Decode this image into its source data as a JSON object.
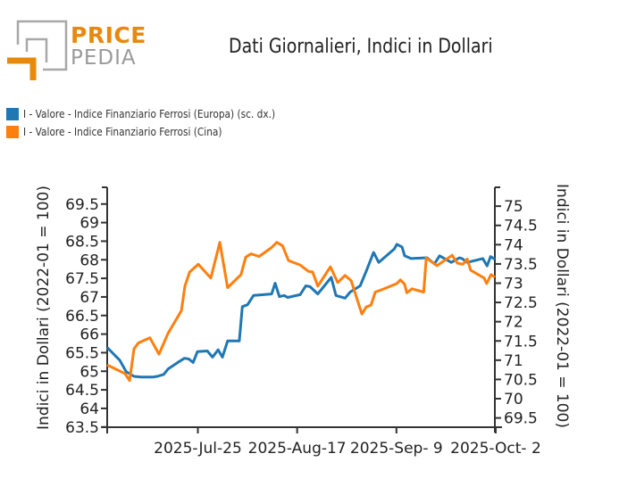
{
  "logo": {
    "line1": "PRICE",
    "line2": "PEDIA",
    "accent": "#e8890c",
    "gray": "#9a9a9a"
  },
  "chart_data": {
    "type": "line",
    "title": "Dati Giornalieri, Indici in Dollari",
    "ylabel_left": "Indici in Dollari (2022-01 = 100)",
    "ylabel_right": "Indici in Dollari (2022-01 = 100)",
    "xlabel": "",
    "x_ticks": [
      "2025-Jul-25",
      "2025-Aug-17",
      "2025-Sep- 9",
      "2025-Oct- 2"
    ],
    "x_tick_days": [
      21,
      44,
      67,
      90
    ],
    "x_range_days": [
      0,
      89.8
    ],
    "ylim_left": [
      63.35,
      69.95
    ],
    "yticks_left": [
      "69.5",
      "69",
      "68.5",
      "68",
      "67.5",
      "67",
      "66.5",
      "66",
      "65.5",
      "65",
      "64.5",
      "64",
      "63.5"
    ],
    "ylim_right": [
      69.12,
      75.49
    ],
    "yticks_right": [
      "75",
      "74.5",
      "74",
      "73.5",
      "73",
      "72.5",
      "72",
      "71.5",
      "71",
      "70.5",
      "70",
      "69.5"
    ],
    "grid": false,
    "legend_position": "top-left",
    "series": [
      {
        "name": "I - Valore - Indice Finanziario Ferrosi (Europa) (sc. dx.)",
        "axis": "right",
        "color": "#1f77b4",
        "x": [
          0,
          2.9,
          4.4,
          6.2,
          7.9,
          10.4,
          11.6,
          13.1,
          14.1,
          16.6,
          17.9,
          18.9,
          19.9,
          20.9,
          23.2,
          24.4,
          25.7,
          26.7,
          27.9,
          30.6,
          31.3,
          32.5,
          33.9,
          38.1,
          38.9,
          39.9,
          41,
          41.8,
          44.7,
          46,
          47,
          48.8,
          51.9,
          53,
          55.1,
          56.3,
          57.6,
          58.6,
          60,
          61.7,
          62.9,
          66.5,
          67.1,
          68.3,
          68.9,
          70.4,
          74.1,
          75.8,
          77,
          79.7,
          81.6,
          82.2,
          83.4,
          87,
          88,
          88.8,
          89.8
        ],
        "values": [
          71.33,
          71.0,
          70.7,
          70.58,
          70.56,
          70.56,
          70.58,
          70.63,
          70.77,
          70.96,
          71.05,
          71.03,
          70.94,
          71.22,
          71.24,
          71.08,
          71.27,
          71.08,
          71.5,
          71.5,
          72.39,
          72.44,
          72.68,
          72.72,
          73.0,
          72.65,
          72.68,
          72.63,
          72.7,
          72.93,
          72.91,
          72.72,
          73.15,
          72.68,
          72.61,
          72.77,
          72.86,
          72.93,
          73.31,
          73.8,
          73.54,
          73.89,
          74.01,
          73.94,
          73.71,
          73.64,
          73.66,
          73.5,
          73.71,
          73.54,
          73.66,
          73.64,
          73.54,
          73.64,
          73.45,
          73.69,
          73.62
        ]
      },
      {
        "name": "I - Valore - Indice Finanziario Ferrosi (Cina)",
        "axis": "left",
        "color": "#ff7f0e",
        "x": [
          0,
          4.1,
          5.2,
          6.2,
          7.2,
          9.9,
          12,
          14.1,
          17.2,
          18,
          19.1,
          21.1,
          24,
          26.1,
          27.9,
          31,
          32.1,
          33.3,
          35.2,
          38.1,
          39.3,
          40.6,
          42,
          44.7,
          46.6,
          47.6,
          48.8,
          51.7,
          53.4,
          55.1,
          56.5,
          59,
          60,
          61.1,
          62.1,
          63.7,
          67.1,
          67.9,
          68.9,
          69.4,
          70.6,
          73.3,
          73.9,
          76.4,
          79.9,
          81.1,
          82.4,
          83.4,
          84.2,
          87.3,
          87.9,
          88.9,
          89.8
        ],
        "values": [
          65.17,
          64.94,
          64.75,
          65.6,
          65.76,
          65.9,
          65.46,
          66.02,
          66.63,
          67.29,
          67.67,
          67.88,
          67.51,
          68.47,
          67.25,
          67.6,
          68.07,
          68.16,
          68.09,
          68.33,
          68.47,
          68.38,
          67.98,
          67.86,
          67.69,
          67.67,
          67.29,
          67.81,
          67.39,
          67.58,
          67.44,
          66.54,
          66.73,
          66.78,
          67.13,
          67.2,
          67.36,
          67.46,
          67.34,
          67.11,
          67.22,
          67.13,
          68.05,
          67.84,
          68.12,
          67.91,
          67.88,
          68.02,
          67.72,
          67.51,
          67.36,
          67.6,
          67.53
        ]
      }
    ]
  }
}
